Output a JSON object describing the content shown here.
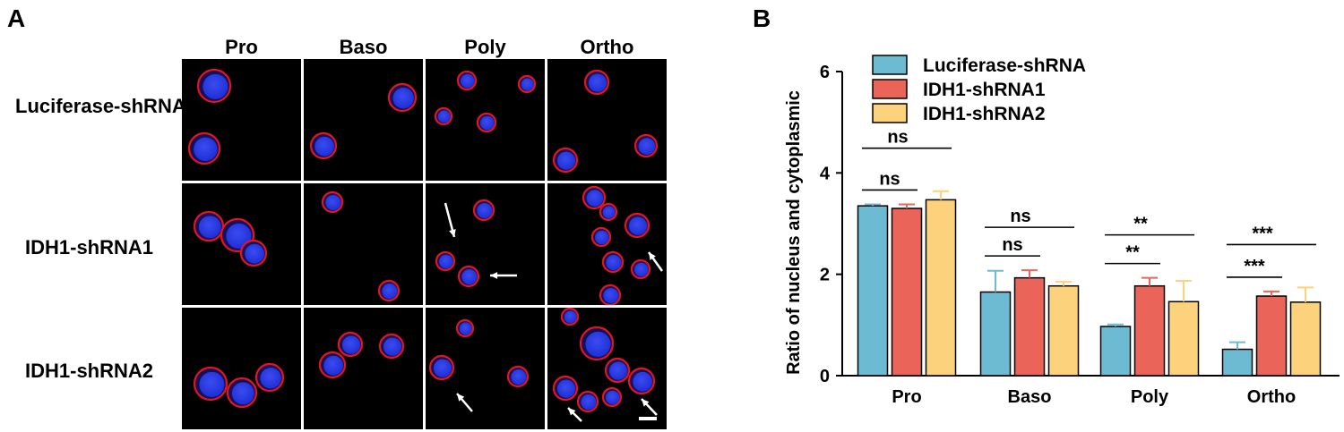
{
  "panel_a": {
    "letter": "A",
    "columns": [
      "Pro",
      "Baso",
      "Poly",
      "Ortho"
    ],
    "rows": [
      "Luciferase-shRNA",
      "IDH1-shRNA1",
      "IDH1-shRNA2"
    ],
    "colors": {
      "background": "#000000",
      "membrane": "#e8141c",
      "nucleus": "#1f2fd6",
      "arrow": "#ffffff"
    },
    "scale_bar": true
  },
  "panel_b": {
    "letter": "B"
  },
  "chart_data": {
    "type": "bar",
    "categories": [
      "Pro",
      "Baso",
      "Poly",
      "Ortho"
    ],
    "ylabel": "Ratio of nucleus and cytoplasmic",
    "xlabel": "",
    "ylim": [
      0,
      6
    ],
    "yticks": [
      0,
      2,
      4,
      6
    ],
    "legend_position": "top-left",
    "series": [
      {
        "name": "Luciferase-shRNA",
        "color": "#6cbbd3",
        "values": [
          3.35,
          1.65,
          0.97,
          0.52
        ],
        "errors": [
          0.03,
          0.42,
          0.04,
          0.14
        ]
      },
      {
        "name": "IDH1-shRNA1",
        "color": "#ea6459",
        "values": [
          3.3,
          1.93,
          1.77,
          1.57
        ],
        "errors": [
          0.08,
          0.15,
          0.16,
          0.09
        ]
      },
      {
        "name": "IDH1-shRNA2",
        "color": "#fdd27c",
        "values": [
          3.47,
          1.77,
          1.46,
          1.45
        ],
        "errors": [
          0.17,
          0.08,
          0.41,
          0.29
        ]
      }
    ],
    "significance": [
      {
        "category": "Pro",
        "from": 0,
        "to": 1,
        "label": "ns"
      },
      {
        "category": "Pro",
        "from": 0,
        "to": 2,
        "label": "ns"
      },
      {
        "category": "Baso",
        "from": 0,
        "to": 1,
        "label": "ns"
      },
      {
        "category": "Baso",
        "from": 0,
        "to": 2,
        "label": "ns"
      },
      {
        "category": "Poly",
        "from": 0,
        "to": 1,
        "label": "**"
      },
      {
        "category": "Poly",
        "from": 0,
        "to": 2,
        "label": "**"
      },
      {
        "category": "Ortho",
        "from": 0,
        "to": 1,
        "label": "***"
      },
      {
        "category": "Ortho",
        "from": 0,
        "to": 2,
        "label": "***"
      }
    ]
  }
}
